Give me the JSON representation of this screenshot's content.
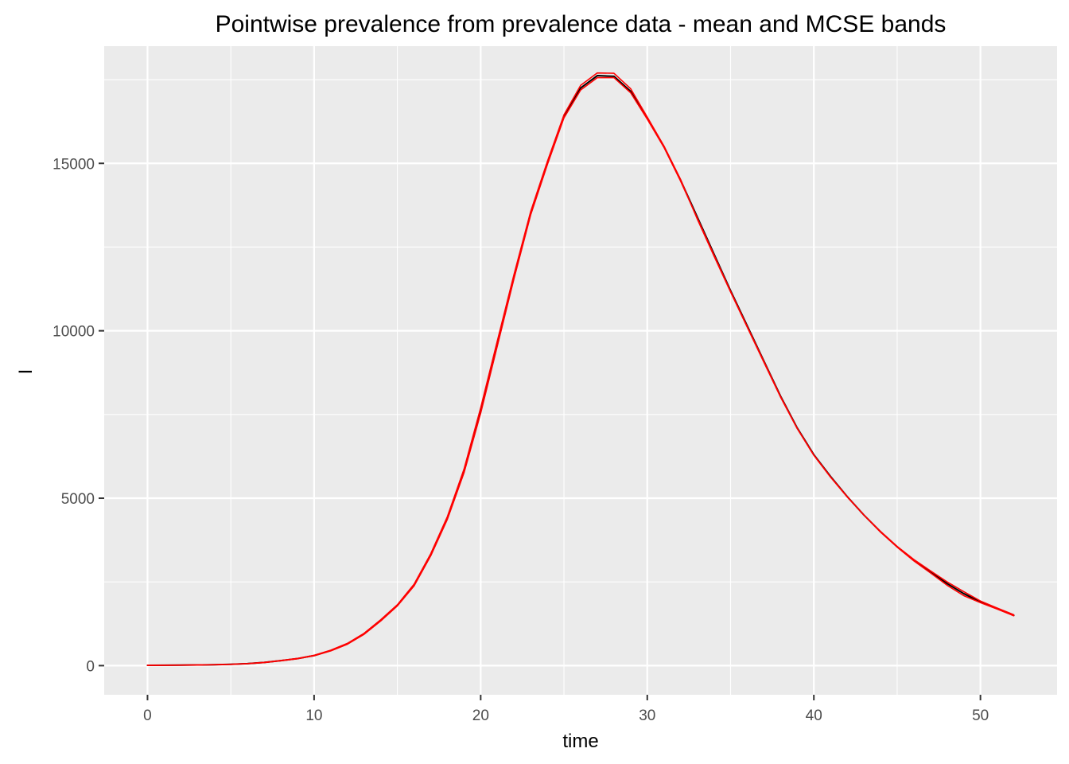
{
  "chart_data": {
    "type": "line",
    "title": "Pointwise prevalence from prevalence data - mean and MCSE bands",
    "xlabel": "time",
    "ylabel": "I",
    "xlim": [
      -2.6,
      54.6
    ],
    "ylim": [
      -870,
      18500
    ],
    "x_ticks": [
      0,
      10,
      20,
      30,
      40,
      50
    ],
    "x_tick_labels": [
      "0",
      "10",
      "20",
      "30",
      "40",
      "50"
    ],
    "y_ticks": [
      0,
      5000,
      10000,
      15000
    ],
    "y_tick_labels": [
      "0",
      "5000",
      "10000",
      "15000"
    ],
    "grid": true,
    "legend": "none",
    "colors": {
      "panel": "#EBEBEB",
      "grid": "#FFFFFF",
      "mean": "#000000",
      "band": "#FF0000"
    },
    "series": [
      {
        "role": "mean",
        "color": "#000000",
        "x": [
          0,
          1,
          2,
          3,
          4,
          5,
          6,
          7,
          8,
          9,
          10,
          11,
          12,
          13,
          14,
          15,
          16,
          17,
          18,
          19,
          20,
          21,
          22,
          23,
          24,
          25,
          26,
          27,
          28,
          29,
          30,
          31,
          32,
          33,
          34,
          35,
          36,
          37,
          38,
          39,
          40,
          41,
          42,
          43,
          44,
          45,
          46,
          47,
          48,
          49,
          50,
          51,
          52
        ],
        "y": [
          10,
          12,
          15,
          20,
          28,
          40,
          60,
          95,
          150,
          210,
          300,
          450,
          650,
          950,
          1350,
          1800,
          2400,
          3300,
          4400,
          5800,
          7600,
          9600,
          11600,
          13500,
          15000,
          16400,
          17250,
          17620,
          17600,
          17150,
          16350,
          15500,
          14500,
          13400,
          12300,
          11200,
          10150,
          9100,
          8050,
          7100,
          6300,
          5650,
          5050,
          4500,
          4000,
          3550,
          3150,
          2800,
          2450,
          2150,
          1900,
          1700,
          1500
        ]
      },
      {
        "role": "upper",
        "color": "#FF0000",
        "x": [
          0,
          1,
          2,
          3,
          4,
          5,
          6,
          7,
          8,
          9,
          10,
          11,
          12,
          13,
          14,
          15,
          16,
          17,
          18,
          19,
          20,
          21,
          22,
          23,
          24,
          25,
          26,
          27,
          28,
          29,
          30,
          31,
          32,
          33,
          34,
          35,
          36,
          37,
          38,
          39,
          40,
          41,
          42,
          43,
          44,
          45,
          46,
          47,
          48,
          49,
          50,
          51,
          52
        ],
        "y": [
          12,
          14,
          17,
          22,
          30,
          42,
          63,
          98,
          155,
          215,
          310,
          460,
          665,
          965,
          1370,
          1820,
          2430,
          3340,
          4450,
          5870,
          7700,
          9700,
          11680,
          13560,
          15050,
          16450,
          17330,
          17700,
          17690,
          17230,
          16380,
          15520,
          14520,
          13340,
          12240,
          11160,
          10110,
          9060,
          8020,
          7080,
          6280,
          5630,
          5040,
          4500,
          4010,
          3560,
          3170,
          2830,
          2500,
          2210,
          1930,
          1720,
          1520
        ]
      },
      {
        "role": "lower",
        "color": "#FF0000",
        "x": [
          0,
          1,
          2,
          3,
          4,
          5,
          6,
          7,
          8,
          9,
          10,
          11,
          12,
          13,
          14,
          15,
          16,
          17,
          18,
          19,
          20,
          21,
          22,
          23,
          24,
          25,
          26,
          27,
          28,
          29,
          30,
          31,
          32,
          33,
          34,
          35,
          36,
          37,
          38,
          39,
          40,
          41,
          42,
          43,
          44,
          45,
          46,
          47,
          48,
          49,
          50,
          51,
          52
        ],
        "y": [
          8,
          10,
          13,
          18,
          26,
          38,
          57,
          92,
          145,
          205,
          295,
          440,
          640,
          935,
          1335,
          1785,
          2380,
          3280,
          4370,
          5760,
          7540,
          9550,
          11560,
          13460,
          14960,
          16360,
          17190,
          17560,
          17560,
          17110,
          16320,
          15480,
          14470,
          13370,
          12270,
          11180,
          10130,
          9090,
          8040,
          7090,
          6290,
          5640,
          5050,
          4500,
          3990,
          3540,
          3130,
          2770,
          2400,
          2090,
          1880,
          1690,
          1490
        ]
      }
    ]
  }
}
